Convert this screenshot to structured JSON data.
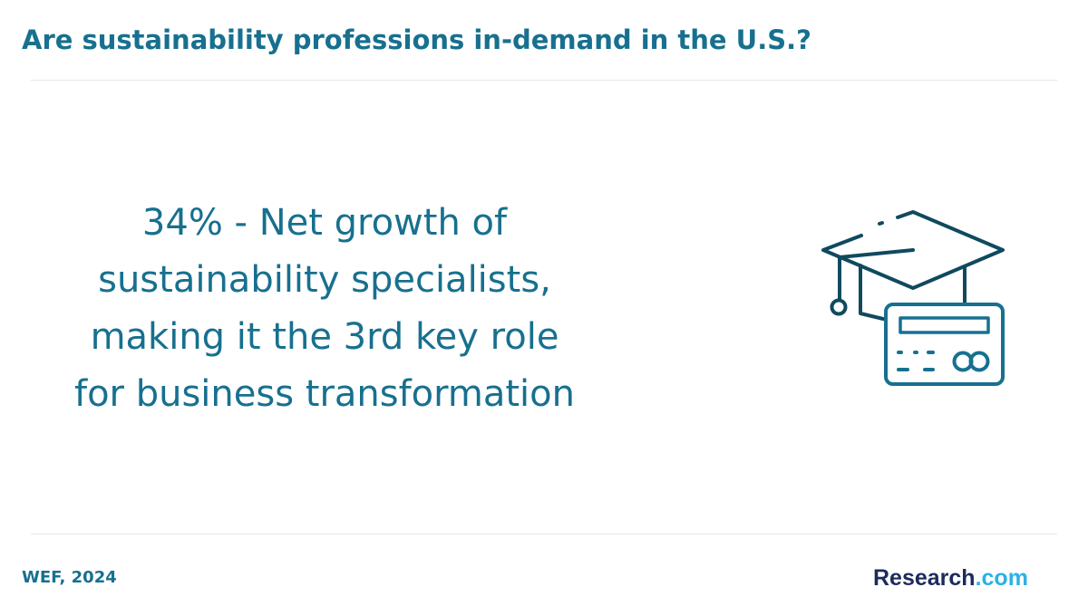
{
  "header": {
    "title": "Are sustainability professions in-demand in the U.S.?"
  },
  "statement": {
    "lines": [
      "34% - Net growth of",
      "sustainability specialists,",
      "making it the 3rd key role",
      "for business transformation"
    ]
  },
  "footer": {
    "source": "WEF, 2024",
    "logo": {
      "name": "Research",
      "suffix": ".com"
    }
  }
}
